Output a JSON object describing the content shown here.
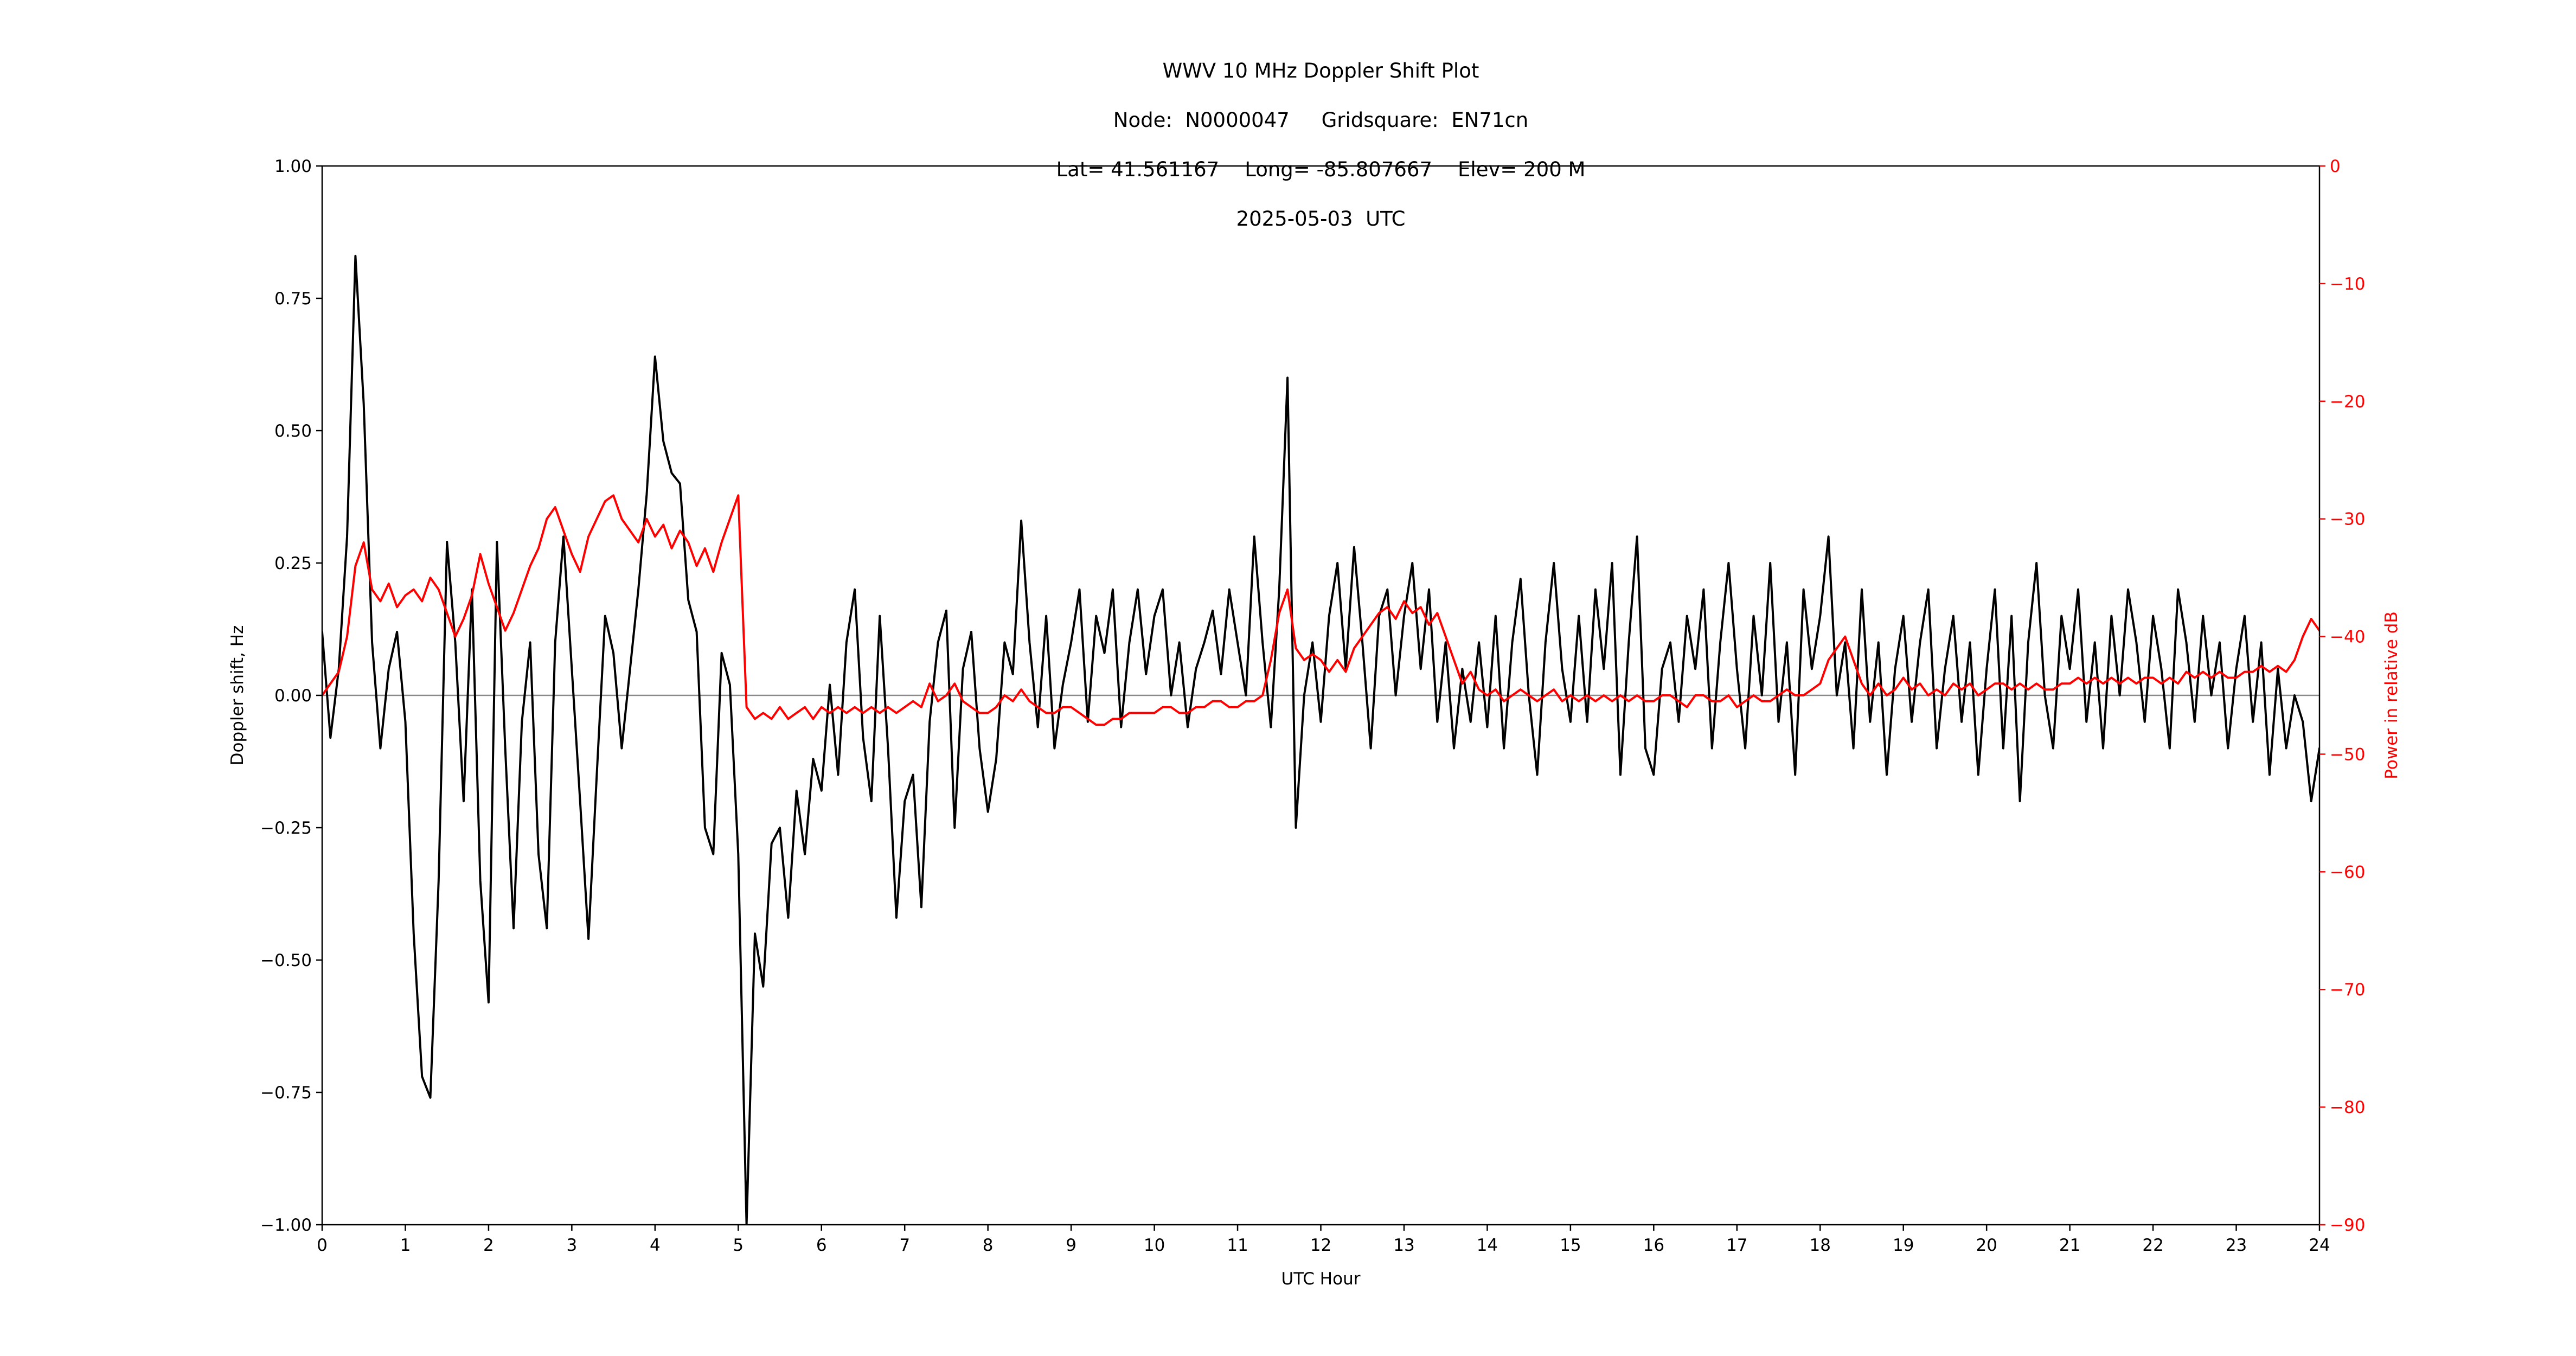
{
  "chart_data": {
    "type": "line",
    "title_lines": [
      "WWV 10 MHz Doppler Shift Plot",
      "Node:  N0000047     Gridsquare:  EN71cn",
      "Lat= 41.561167    Long= -85.807667    Elev= 200 M",
      "2025-05-03  UTC"
    ],
    "xlabel": "UTC Hour",
    "ylabel_left": "Doppler shift, Hz",
    "ylabel_right": "Power in relative dB",
    "x_range": [
      0,
      24
    ],
    "y_left_range": [
      -1,
      1
    ],
    "y_right_range": [
      -90,
      0
    ],
    "grid": false,
    "legend": "none",
    "zero_line": 0,
    "colors": {
      "doppler": "#000000",
      "power": "#ff0000",
      "zero_line": "#8a8a8a",
      "axis": "#000000",
      "background": "#ffffff"
    },
    "x_ticks": [
      0,
      1,
      2,
      3,
      4,
      5,
      6,
      7,
      8,
      9,
      10,
      11,
      12,
      13,
      14,
      15,
      16,
      17,
      18,
      19,
      20,
      21,
      22,
      23,
      24
    ],
    "x_tick_labels": [
      "0",
      "1",
      "2",
      "3",
      "4",
      "5",
      "6",
      "7",
      "8",
      "9",
      "10",
      "11",
      "12",
      "13",
      "14",
      "15",
      "16",
      "17",
      "18",
      "19",
      "20",
      "21",
      "22",
      "23",
      "24"
    ],
    "y_left_ticks": [
      1.0,
      0.75,
      0.5,
      0.25,
      0.0,
      -0.25,
      -0.5,
      -0.75,
      -1.0
    ],
    "y_left_tick_labels": [
      "1.00",
      "0.75",
      "0.50",
      "0.25",
      "0.00",
      "−0.25",
      "−0.50",
      "−0.75",
      "−1.00"
    ],
    "y_right_ticks": [
      0,
      -10,
      -20,
      -30,
      -40,
      -50,
      -60,
      -70,
      -80,
      -90
    ],
    "y_right_tick_labels": [
      "0",
      "−10",
      "−20",
      "−30",
      "−40",
      "−50",
      "−60",
      "−70",
      "−80",
      "−90"
    ],
    "x_start": 0,
    "x_step": 0.1,
    "series": [
      {
        "name": "Doppler shift (Hz)",
        "axis": "left",
        "color": "#000000",
        "values": [
          0.12,
          -0.08,
          0.05,
          0.3,
          0.83,
          0.55,
          0.1,
          -0.1,
          0.05,
          0.12,
          -0.05,
          -0.45,
          -0.72,
          -0.76,
          -0.35,
          0.29,
          0.1,
          -0.2,
          0.2,
          -0.35,
          -0.58,
          0.29,
          -0.1,
          -0.44,
          -0.05,
          0.1,
          -0.3,
          -0.44,
          0.1,
          0.3,
          0.05,
          -0.2,
          -0.46,
          -0.15,
          0.15,
          0.08,
          -0.1,
          0.05,
          0.2,
          0.38,
          0.64,
          0.48,
          0.42,
          0.4,
          0.18,
          0.12,
          -0.25,
          -0.3,
          0.08,
          0.02,
          -0.3,
          -1.0,
          -0.45,
          -0.55,
          -0.28,
          -0.25,
          -0.42,
          -0.18,
          -0.3,
          -0.12,
          -0.18,
          0.02,
          -0.15,
          0.1,
          0.2,
          -0.08,
          -0.2,
          0.15,
          -0.1,
          -0.42,
          -0.2,
          -0.15,
          -0.4,
          -0.05,
          0.1,
          0.16,
          -0.25,
          0.05,
          0.12,
          -0.1,
          -0.22,
          -0.12,
          0.1,
          0.04,
          0.33,
          0.1,
          -0.06,
          0.15,
          -0.1,
          0.02,
          0.1,
          0.2,
          -0.05,
          0.15,
          0.08,
          0.2,
          -0.06,
          0.1,
          0.2,
          0.04,
          0.15,
          0.2,
          0.0,
          0.1,
          -0.06,
          0.05,
          0.1,
          0.16,
          0.04,
          0.2,
          0.1,
          0.0,
          0.3,
          0.1,
          -0.06,
          0.2,
          0.6,
          -0.25,
          0.0,
          0.1,
          -0.05,
          0.15,
          0.25,
          0.05,
          0.28,
          0.1,
          -0.1,
          0.15,
          0.2,
          0.0,
          0.15,
          0.25,
          0.05,
          0.2,
          -0.05,
          0.1,
          -0.1,
          0.05,
          -0.05,
          0.1,
          -0.06,
          0.15,
          -0.1,
          0.1,
          0.22,
          0.0,
          -0.15,
          0.1,
          0.25,
          0.05,
          -0.05,
          0.15,
          -0.05,
          0.2,
          0.05,
          0.25,
          -0.15,
          0.1,
          0.3,
          -0.1,
          -0.15,
          0.05,
          0.1,
          -0.05,
          0.15,
          0.05,
          0.2,
          -0.1,
          0.1,
          0.25,
          0.05,
          -0.1,
          0.15,
          0.0,
          0.25,
          -0.05,
          0.1,
          -0.15,
          0.2,
          0.05,
          0.15,
          0.3,
          0.0,
          0.1,
          -0.1,
          0.2,
          -0.05,
          0.1,
          -0.15,
          0.05,
          0.15,
          -0.05,
          0.1,
          0.2,
          -0.1,
          0.05,
          0.15,
          -0.05,
          0.1,
          -0.15,
          0.05,
          0.2,
          -0.1,
          0.15,
          -0.2,
          0.1,
          0.25,
          0.0,
          -0.1,
          0.15,
          0.05,
          0.2,
          -0.05,
          0.1,
          -0.1,
          0.15,
          0.0,
          0.2,
          0.1,
          -0.05,
          0.15,
          0.05,
          -0.1,
          0.2,
          0.1,
          -0.05,
          0.15,
          0.0,
          0.1,
          -0.1,
          0.05,
          0.15,
          -0.05,
          0.1,
          -0.15,
          0.05,
          -0.1,
          0.0,
          -0.05,
          -0.2,
          -0.1
        ]
      },
      {
        "name": "Power (relative dB)",
        "axis": "right",
        "color": "#ff0000",
        "values": [
          -45,
          -44,
          -43,
          -40,
          -34,
          -32,
          -36,
          -37,
          -35.5,
          -37.5,
          -36.5,
          -36,
          -37,
          -35,
          -36,
          -38,
          -40,
          -38.5,
          -36.5,
          -33,
          -35.5,
          -37.5,
          -39.5,
          -38,
          -36,
          -34,
          -32.5,
          -30,
          -29,
          -31,
          -33,
          -34.5,
          -31.5,
          -30,
          -28.5,
          -28,
          -30,
          -31,
          -32,
          -30,
          -31.5,
          -30.5,
          -32.5,
          -31,
          -32,
          -34,
          -32.5,
          -34.5,
          -32,
          -30,
          -28,
          -46,
          -47,
          -46.5,
          -47,
          -46,
          -47,
          -46.5,
          -46,
          -47,
          -46,
          -46.5,
          -46,
          -46.5,
          -46,
          -46.5,
          -46,
          -46.5,
          -46,
          -46.5,
          -46,
          -45.5,
          -46,
          -44,
          -45.5,
          -45,
          -44,
          -45.5,
          -46,
          -46.5,
          -46.5,
          -46,
          -45,
          -45.5,
          -44.5,
          -45.5,
          -46,
          -46.5,
          -46.5,
          -46,
          -46,
          -46.5,
          -47,
          -47.5,
          -47.5,
          -47,
          -47,
          -46.5,
          -46.5,
          -46.5,
          -46.5,
          -46,
          -46,
          -46.5,
          -46.5,
          -46,
          -46,
          -45.5,
          -45.5,
          -46,
          -46,
          -45.5,
          -45.5,
          -45,
          -42,
          -38,
          -36,
          -41,
          -42,
          -41.5,
          -42,
          -43,
          -42,
          -43,
          -41,
          -40,
          -39,
          -38,
          -37.5,
          -38.5,
          -37,
          -38,
          -37.5,
          -39,
          -38,
          -40,
          -42,
          -44,
          -43,
          -44.5,
          -45,
          -44.5,
          -45.5,
          -45,
          -44.5,
          -45,
          -45.5,
          -45,
          -44.5,
          -45.5,
          -45,
          -45.5,
          -45,
          -45.5,
          -45,
          -45.5,
          -45,
          -45.5,
          -45,
          -45.5,
          -45.5,
          -45,
          -45,
          -45.5,
          -46,
          -45,
          -45,
          -45.5,
          -45.5,
          -45,
          -46,
          -45.5,
          -45,
          -45.5,
          -45.5,
          -45,
          -44.5,
          -45,
          -45,
          -44.5,
          -44,
          -42,
          -41,
          -40,
          -42,
          -44,
          -45,
          -44,
          -45,
          -44.5,
          -43.5,
          -44.5,
          -44,
          -45,
          -44.5,
          -45,
          -44,
          -44.5,
          -44,
          -45,
          -44.5,
          -44,
          -44,
          -44.5,
          -44,
          -44.5,
          -44,
          -44.5,
          -44.5,
          -44,
          -44,
          -43.5,
          -44,
          -43.5,
          -44,
          -43.5,
          -44,
          -43.5,
          -44,
          -43.5,
          -43.5,
          -44,
          -43.5,
          -44,
          -43,
          -43.5,
          -43,
          -43.5,
          -43,
          -43.5,
          -43.5,
          -43,
          -43,
          -42.5,
          -43,
          -42.5,
          -43,
          -42,
          -40,
          -38.5,
          -39.5
        ]
      }
    ]
  }
}
